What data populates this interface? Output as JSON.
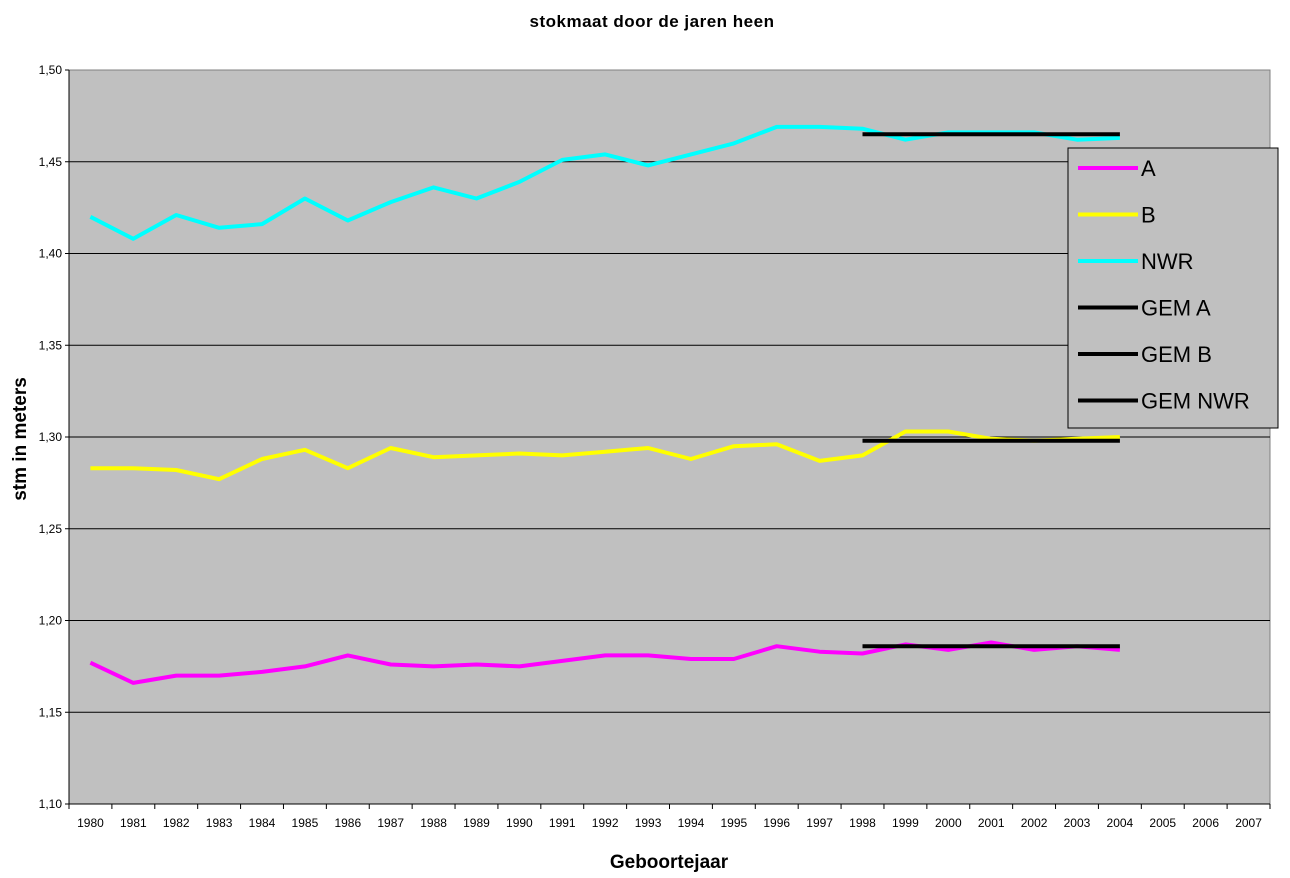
{
  "chart_data": {
    "type": "line",
    "title": "stokmaat door de jaren heen",
    "xlabel": "Geboortejaar",
    "ylabel": "stm in meters",
    "ylim": [
      1.1,
      1.5
    ],
    "y_ticks": [
      "1,10",
      "1,15",
      "1,20",
      "1,25",
      "1,30",
      "1,35",
      "1,40",
      "1,45",
      "1,50"
    ],
    "y_tick_values": [
      1.1,
      1.15,
      1.2,
      1.25,
      1.3,
      1.35,
      1.4,
      1.45,
      1.5
    ],
    "categories": [
      "1980",
      "1981",
      "1982",
      "1983",
      "1984",
      "1985",
      "1986",
      "1987",
      "1988",
      "1989",
      "1990",
      "1991",
      "1992",
      "1993",
      "1994",
      "1995",
      "1996",
      "1997",
      "1998",
      "1999",
      "2000",
      "2001",
      "2002",
      "2003",
      "2004",
      "2005",
      "2006",
      "2007"
    ],
    "grid": true,
    "plot_background": "#c0c0c0",
    "legend_position": "right",
    "series": [
      {
        "name": "A",
        "color": "#ff00ff",
        "values": [
          1.177,
          1.166,
          1.17,
          1.17,
          1.172,
          1.175,
          1.181,
          1.176,
          1.175,
          1.176,
          1.175,
          1.178,
          1.181,
          1.181,
          1.179,
          1.179,
          1.186,
          1.183,
          1.182,
          1.187,
          1.184,
          1.188,
          1.184,
          1.186,
          1.184,
          null,
          null,
          null
        ]
      },
      {
        "name": "B",
        "color": "#ffff00",
        "values": [
          1.283,
          1.283,
          1.282,
          1.277,
          1.288,
          1.293,
          1.283,
          1.294,
          1.289,
          1.29,
          1.291,
          1.29,
          1.292,
          1.294,
          1.288,
          1.295,
          1.296,
          1.287,
          1.29,
          1.303,
          1.303,
          1.299,
          1.298,
          1.299,
          1.3,
          null,
          null,
          null
        ]
      },
      {
        "name": "NWR",
        "color": "#00ffff",
        "values": [
          1.42,
          1.408,
          1.421,
          1.414,
          1.416,
          1.43,
          1.418,
          1.428,
          1.436,
          1.43,
          1.439,
          1.451,
          1.454,
          1.448,
          1.454,
          1.46,
          1.469,
          1.469,
          1.468,
          1.462,
          1.466,
          1.466,
          1.466,
          1.462,
          1.463,
          null,
          null,
          null
        ]
      },
      {
        "name": "GEM A",
        "color": "#000000",
        "values": [
          null,
          null,
          null,
          null,
          null,
          null,
          null,
          null,
          null,
          null,
          null,
          null,
          null,
          null,
          null,
          null,
          null,
          null,
          1.186,
          1.186,
          1.186,
          1.186,
          1.186,
          1.186,
          1.186,
          null,
          null,
          null
        ]
      },
      {
        "name": "GEM B",
        "color": "#000000",
        "values": [
          null,
          null,
          null,
          null,
          null,
          null,
          null,
          null,
          null,
          null,
          null,
          null,
          null,
          null,
          null,
          null,
          null,
          null,
          1.298,
          1.298,
          1.298,
          1.298,
          1.298,
          1.298,
          1.298,
          null,
          null,
          null
        ]
      },
      {
        "name": "GEM NWR",
        "color": "#000000",
        "values": [
          null,
          null,
          null,
          null,
          null,
          null,
          null,
          null,
          null,
          null,
          null,
          null,
          null,
          null,
          null,
          null,
          null,
          null,
          1.465,
          1.465,
          1.465,
          1.465,
          1.465,
          1.465,
          1.465,
          null,
          null,
          null
        ]
      }
    ]
  }
}
